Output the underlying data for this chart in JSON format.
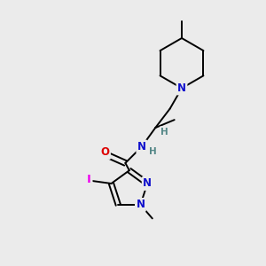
{
  "background_color": "#ebebeb",
  "bond_color": "#000000",
  "atom_colors": {
    "N": "#1010cc",
    "O": "#dd0000",
    "I": "#ee00ee",
    "H": "#558888"
  },
  "figsize": [
    3.0,
    3.0
  ],
  "dpi": 100,
  "lw": 1.4,
  "fs": 8.5,
  "fs_small": 7.5
}
